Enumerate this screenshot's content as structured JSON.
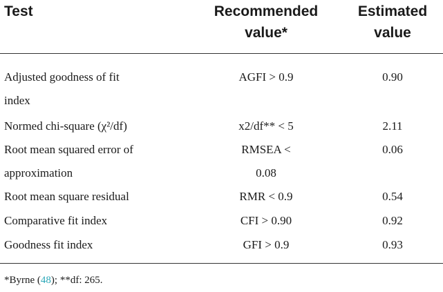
{
  "table": {
    "headers": {
      "test": "Test",
      "recommended_line1": "Recommended",
      "recommended_line2": "value*",
      "estimated_line1": "Estimated",
      "estimated_line2": "value"
    },
    "rows": [
      {
        "test_line1": "Adjusted goodness of fit",
        "test_line2": "index",
        "recommended_line1": "AGFI > 0.9",
        "recommended_line2": "",
        "estimated": "0.90"
      },
      {
        "test_line1": "Normed chi-square (χ²/df)",
        "test_line2": "",
        "recommended_line1": "x2/df** < 5",
        "recommended_line2": "",
        "estimated": "2.11"
      },
      {
        "test_line1": "Root mean squared error of",
        "test_line2": "approximation",
        "recommended_line1": "RMSEA <",
        "recommended_line2": "0.08",
        "estimated": "0.06"
      },
      {
        "test_line1": "Root mean square residual",
        "test_line2": "",
        "recommended_line1": "RMR < 0.9",
        "recommended_line2": "",
        "estimated": "0.54"
      },
      {
        "test_line1": "Comparative fit index",
        "test_line2": "",
        "recommended_line1": "CFI > 0.90",
        "recommended_line2": "",
        "estimated": "0.92"
      },
      {
        "test_line1": "Goodness fit index",
        "test_line2": "",
        "recommended_line1": "GFI > 0.9",
        "recommended_line2": "",
        "estimated": "0.93"
      }
    ]
  },
  "footnote": {
    "prefix": "*Byrne (",
    "ref": "48",
    "suffix": "); **df: 265."
  },
  "colors": {
    "link": "#2aa7b8",
    "rule": "#333333"
  }
}
